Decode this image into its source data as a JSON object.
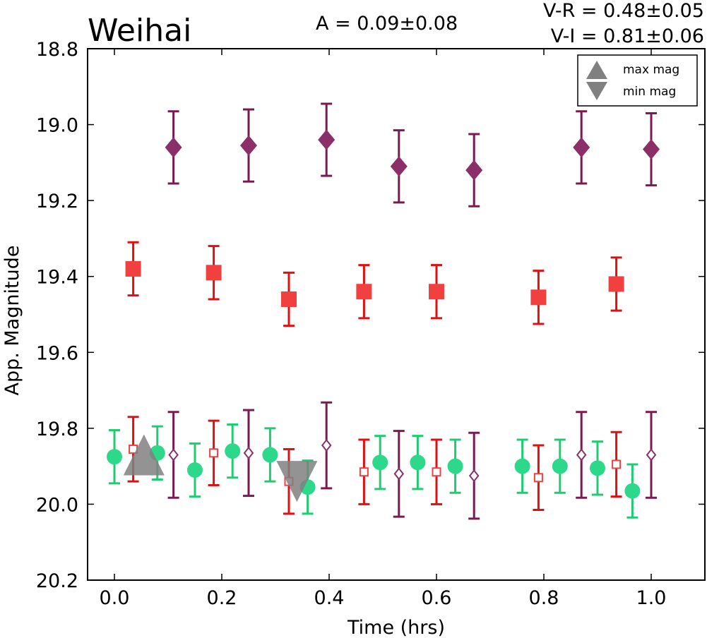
{
  "chart_data": {
    "type": "scatter",
    "title": "Weihai",
    "annotations": {
      "amplitude": "A  = 0.09±0.08",
      "v_r": "V-R = 0.48±0.05",
      "v_i": "V-I  = 0.81±0.06"
    },
    "xlabel": "Time (hrs)",
    "ylabel": "App. Magnitude",
    "xlim": [
      -0.05,
      1.1
    ],
    "ylim": [
      20.2,
      18.8
    ],
    "y_inverted": true,
    "x_ticks": [
      "0.0",
      "0.2",
      "0.4",
      "0.6",
      "0.8",
      "1.0"
    ],
    "y_ticks": [
      "18.8",
      "19.0",
      "19.2",
      "19.4",
      "19.6",
      "19.8",
      "20.0",
      "20.2"
    ],
    "x_tick_values": [
      0.0,
      0.2,
      0.4,
      0.6,
      0.8,
      1.0
    ],
    "y_tick_values": [
      18.8,
      19.0,
      19.2,
      19.4,
      19.6,
      19.8,
      20.0,
      20.2
    ],
    "grid": false,
    "legend_position": "top-right",
    "legend": [
      {
        "label": "max mag",
        "marker": "triangle-up",
        "color": "#808080"
      },
      {
        "label": "min mag",
        "marker": "triangle-down",
        "color": "#808080"
      }
    ],
    "series": [
      {
        "marker": "diamond-filled",
        "color": "#8a2f68",
        "ecolor": "#7a1a50",
        "x": [
          0.11,
          0.25,
          0.395,
          0.53,
          0.67,
          0.87,
          1.0
        ],
        "y": [
          19.06,
          19.055,
          19.04,
          19.11,
          19.12,
          19.06,
          19.065
        ],
        "err": [
          0.095,
          0.095,
          0.095,
          0.095,
          0.095,
          0.095,
          0.095
        ]
      },
      {
        "marker": "square-filled",
        "color": "#f04040",
        "ecolor": "#e01010",
        "x": [
          0.035,
          0.185,
          0.325,
          0.465,
          0.6,
          0.79,
          0.935
        ],
        "y": [
          19.38,
          19.39,
          19.46,
          19.44,
          19.44,
          19.455,
          19.42
        ],
        "err": [
          0.07,
          0.07,
          0.07,
          0.07,
          0.07,
          0.07,
          0.07
        ]
      },
      {
        "marker": "circle-filled",
        "color": "#2ed88a",
        "ecolor": "#1fcc70",
        "x": [
          0.0,
          0.08,
          0.15,
          0.22,
          0.29,
          0.36,
          0.495,
          0.565,
          0.635,
          0.76,
          0.83,
          0.9,
          0.965
        ],
        "y": [
          19.875,
          19.865,
          19.91,
          19.86,
          19.87,
          19.955,
          19.89,
          19.89,
          19.9,
          19.9,
          19.9,
          19.905,
          19.965
        ],
        "err": [
          0.07,
          0.07,
          0.07,
          0.07,
          0.07,
          0.07,
          0.07,
          0.07,
          0.07,
          0.07,
          0.07,
          0.07,
          0.07
        ]
      },
      {
        "marker": "square-open",
        "color": "#f04040",
        "ecolor": "#e01010",
        "x": [
          0.035,
          0.185,
          0.325,
          0.465,
          0.6,
          0.79,
          0.935
        ],
        "y": [
          19.855,
          19.865,
          19.94,
          19.915,
          19.915,
          19.93,
          19.895
        ],
        "err": [
          0.085,
          0.085,
          0.085,
          0.085,
          0.085,
          0.085,
          0.085
        ]
      },
      {
        "marker": "diamond-open",
        "color": "#8a2f68",
        "ecolor": "#7a1a50",
        "x": [
          0.11,
          0.25,
          0.395,
          0.53,
          0.67,
          0.87,
          1.0
        ],
        "y": [
          19.87,
          19.865,
          19.845,
          19.92,
          19.925,
          19.87,
          19.87
        ],
        "err": [
          0.113,
          0.113,
          0.113,
          0.113,
          0.113,
          0.113,
          0.113
        ]
      }
    ],
    "extrema": [
      {
        "kind": "max mag",
        "marker": "triangle-up",
        "color": "#808080",
        "x": 0.055,
        "y": 19.87
      },
      {
        "kind": "min mag",
        "marker": "triangle-down",
        "color": "#808080",
        "x": 0.34,
        "y": 19.94
      }
    ]
  }
}
